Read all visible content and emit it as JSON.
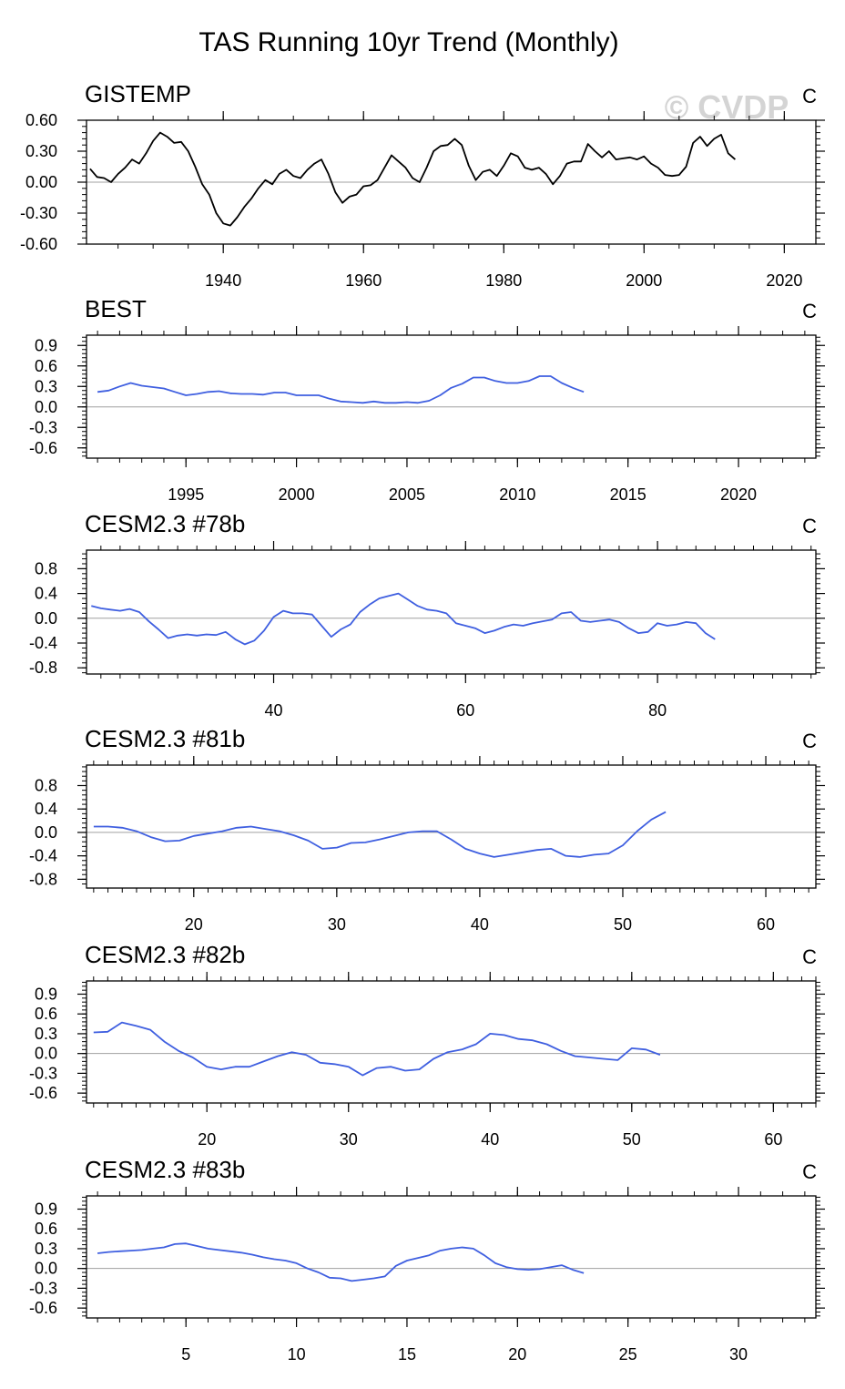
{
  "figure": {
    "title": "TAS Running 10yr Trend (Monthly)",
    "watermark": "© CVDP"
  },
  "chart_data": [
    {
      "type": "line",
      "title": "GISTEMP",
      "unit": "C",
      "color": "#000000",
      "xlim": [
        1920.5,
        2024.5
      ],
      "ylim": [
        -0.6,
        0.6
      ],
      "xticks": [
        1940,
        1960,
        1980,
        2000,
        2020
      ],
      "yticks": [
        0.6,
        0.3,
        0.0,
        -0.3,
        -0.6
      ],
      "ytick_labels": [
        "0.60",
        "0.30",
        "0.00",
        "-0.30",
        "-0.60"
      ],
      "x": [
        1921.0,
        1922.0,
        1923.0,
        1924.0,
        1925.0,
        1926.0,
        1927.0,
        1928.0,
        1929.0,
        1930.0,
        1931.0,
        1932.0,
        1933.0,
        1934.0,
        1935.0,
        1936.0,
        1937.0,
        1938.0,
        1939.0,
        1940.0,
        1941.0,
        1942.0,
        1943.0,
        1944.0,
        1945.0,
        1946.0,
        1947.0,
        1948.0,
        1949.0,
        1950.0,
        1951.0,
        1952.0,
        1953.0,
        1954.0,
        1955.0,
        1956.0,
        1957.0,
        1958.0,
        1959.0,
        1960.0,
        1961.0,
        1962.0,
        1963.0,
        1964.0,
        1965.0,
        1966.0,
        1967.0,
        1968.0,
        1969.0,
        1970.0,
        1971.0,
        1972.0,
        1973.0,
        1974.0,
        1975.0,
        1976.0,
        1977.0,
        1978.0,
        1979.0,
        1980.0,
        1981.0,
        1982.0,
        1983.0,
        1984.0,
        1985.0,
        1986.0,
        1987.0,
        1988.0,
        1989.0,
        1990.0,
        1991.0,
        1992.0,
        1993.0,
        1994.0,
        1995.0,
        1996.0,
        1997.0,
        1998.0,
        1999.0,
        2000.0,
        2001.0,
        2002.0,
        2003.0,
        2004.0,
        2005.0,
        2006.0,
        2007.0,
        2008.0,
        2009.0,
        2010.0,
        2011.0,
        2012.0,
        2013.0
      ],
      "y": [
        0.13,
        0.05,
        0.04,
        0.0,
        0.08,
        0.14,
        0.22,
        0.18,
        0.28,
        0.4,
        0.48,
        0.44,
        0.38,
        0.39,
        0.3,
        0.15,
        -0.02,
        -0.12,
        -0.3,
        -0.4,
        -0.42,
        -0.34,
        -0.24,
        -0.16,
        -0.06,
        0.02,
        -0.02,
        0.08,
        0.12,
        0.06,
        0.04,
        0.12,
        0.18,
        0.22,
        0.08,
        -0.1,
        -0.2,
        -0.14,
        -0.12,
        -0.04,
        -0.03,
        0.02,
        0.14,
        0.26,
        0.2,
        0.14,
        0.04,
        0.0,
        0.14,
        0.3,
        0.35,
        0.36,
        0.42,
        0.36,
        0.16,
        0.02,
        0.1,
        0.12,
        0.06,
        0.16,
        0.28,
        0.25,
        0.14,
        0.12,
        0.14,
        0.08,
        -0.02,
        0.06,
        0.18,
        0.2,
        0.2,
        0.37,
        0.3,
        0.24,
        0.3,
        0.22,
        0.23,
        0.24,
        0.22,
        0.25,
        0.18,
        0.14,
        0.07,
        0.06,
        0.07,
        0.15,
        0.38,
        0.44,
        0.35,
        0.42,
        0.46,
        0.28,
        0.22
      ]
    },
    {
      "type": "line",
      "title": "BEST",
      "unit": "C",
      "color": "#3f5fe0",
      "xlim": [
        1990.5,
        2023.5
      ],
      "ylim": [
        -0.75,
        1.05
      ],
      "xticks": [
        1995,
        2000,
        2005,
        2010,
        2015,
        2020
      ],
      "yticks": [
        0.9,
        0.6,
        0.3,
        0.0,
        -0.3,
        -0.6
      ],
      "ytick_labels": [
        "0.9",
        "0.6",
        "0.3",
        "0.0",
        "-0.3",
        "-0.6"
      ],
      "x": [
        1991.0,
        1991.5,
        1992.0,
        1992.5,
        1993.0,
        1993.5,
        1994.0,
        1994.5,
        1995.0,
        1995.5,
        1996.0,
        1996.5,
        1997.0,
        1997.5,
        1998.0,
        1998.5,
        1999.0,
        1999.5,
        2000.0,
        2000.5,
        2001.0,
        2001.5,
        2002.0,
        2002.5,
        2003.0,
        2003.5,
        2004.0,
        2004.5,
        2005.0,
        2005.5,
        2006.0,
        2006.5,
        2007.0,
        2007.5,
        2008.0,
        2008.5,
        2009.0,
        2009.5,
        2010.0,
        2010.5,
        2011.0,
        2011.5,
        2012.0,
        2012.5,
        2013.0
      ],
      "y": [
        0.22,
        0.24,
        0.3,
        0.35,
        0.31,
        0.29,
        0.27,
        0.22,
        0.17,
        0.19,
        0.22,
        0.23,
        0.2,
        0.19,
        0.19,
        0.18,
        0.21,
        0.21,
        0.17,
        0.17,
        0.17,
        0.12,
        0.08,
        0.07,
        0.06,
        0.08,
        0.06,
        0.06,
        0.07,
        0.06,
        0.09,
        0.17,
        0.28,
        0.34,
        0.43,
        0.43,
        0.38,
        0.35,
        0.35,
        0.38,
        0.45,
        0.45,
        0.35,
        0.28,
        0.22
      ]
    },
    {
      "type": "line",
      "title": "CESM2.3 #78b",
      "unit": "C",
      "color": "#3f5fe0",
      "xlim": [
        20.5,
        96.5
      ],
      "ylim": [
        -0.9,
        1.1
      ],
      "xticks": [
        40,
        60,
        80
      ],
      "yticks": [
        0.8,
        0.4,
        0.0,
        -0.4,
        -0.8
      ],
      "ytick_labels": [
        "0.8",
        "0.4",
        "0.0",
        "-0.4",
        "-0.8"
      ],
      "x": [
        21,
        22,
        23,
        24,
        25,
        26,
        27,
        28,
        29,
        30,
        31,
        32,
        33,
        34,
        35,
        36,
        37,
        38,
        39,
        40,
        41,
        42,
        43,
        44,
        45,
        46,
        47,
        48,
        49,
        50,
        51,
        52,
        53,
        54,
        55,
        56,
        57,
        58,
        59,
        60,
        61,
        62,
        63,
        64,
        65,
        66,
        67,
        68,
        69,
        70,
        71,
        72,
        73,
        74,
        75,
        76,
        77,
        78,
        79,
        80,
        81,
        82,
        83,
        84,
        85,
        86
      ],
      "y": [
        0.2,
        0.16,
        0.14,
        0.12,
        0.15,
        0.1,
        -0.05,
        -0.18,
        -0.32,
        -0.28,
        -0.26,
        -0.28,
        -0.26,
        -0.27,
        -0.22,
        -0.34,
        -0.42,
        -0.36,
        -0.2,
        0.02,
        0.12,
        0.08,
        0.08,
        0.06,
        -0.12,
        -0.3,
        -0.18,
        -0.1,
        0.1,
        0.22,
        0.32,
        0.36,
        0.4,
        0.3,
        0.2,
        0.14,
        0.12,
        0.08,
        -0.08,
        -0.12,
        -0.16,
        -0.24,
        -0.2,
        -0.14,
        -0.1,
        -0.12,
        -0.08,
        -0.05,
        -0.02,
        0.08,
        0.1,
        -0.04,
        -0.06,
        -0.04,
        -0.02,
        -0.06,
        -0.16,
        -0.24,
        -0.22,
        -0.08,
        -0.12,
        -0.1,
        -0.06,
        -0.08,
        -0.24,
        -0.34
      ]
    },
    {
      "type": "line",
      "title": "CESM2.3 #81b",
      "unit": "C",
      "color": "#3f5fe0",
      "xlim": [
        12.5,
        63.5
      ],
      "ylim": [
        -0.95,
        1.15
      ],
      "xticks": [
        20,
        30,
        40,
        50,
        60
      ],
      "yticks": [
        0.8,
        0.4,
        0.0,
        -0.4,
        -0.8
      ],
      "ytick_labels": [
        "0.8",
        "0.4",
        "0.0",
        "-0.4",
        "-0.8"
      ],
      "x": [
        13,
        14,
        15,
        16,
        17,
        18,
        19,
        20,
        21,
        22,
        23,
        24,
        25,
        26,
        27,
        28,
        29,
        30,
        31,
        32,
        33,
        34,
        35,
        36,
        37,
        38,
        39,
        40,
        41,
        42,
        43,
        44,
        45,
        46,
        47,
        48,
        49,
        50,
        51,
        52,
        53
      ],
      "y": [
        0.1,
        0.1,
        0.08,
        0.02,
        -0.08,
        -0.15,
        -0.14,
        -0.06,
        -0.02,
        0.02,
        0.08,
        0.1,
        0.06,
        0.02,
        -0.05,
        -0.14,
        -0.28,
        -0.26,
        -0.18,
        -0.17,
        -0.12,
        -0.06,
        0.0,
        0.02,
        0.02,
        -0.12,
        -0.28,
        -0.36,
        -0.42,
        -0.38,
        -0.34,
        -0.3,
        -0.28,
        -0.4,
        -0.42,
        -0.38,
        -0.36,
        -0.22,
        0.02,
        0.22,
        0.35
      ]
    },
    {
      "type": "line",
      "title": "CESM2.3 #82b",
      "unit": "C",
      "color": "#3f5fe0",
      "xlim": [
        11.5,
        63.0
      ],
      "ylim": [
        -0.75,
        1.1
      ],
      "xticks": [
        20,
        30,
        40,
        50,
        60
      ],
      "yticks": [
        0.9,
        0.6,
        0.3,
        0.0,
        -0.3,
        -0.6
      ],
      "ytick_labels": [
        "0.9",
        "0.6",
        "0.3",
        "0.0",
        "-0.3",
        "-0.6"
      ],
      "x": [
        12,
        13,
        14,
        15,
        16,
        17,
        18,
        19,
        20,
        21,
        22,
        23,
        24,
        25,
        26,
        27,
        28,
        29,
        30,
        31,
        32,
        33,
        34,
        35,
        36,
        37,
        38,
        39,
        40,
        41,
        42,
        43,
        44,
        45,
        46,
        47,
        48,
        49,
        50,
        51,
        52
      ],
      "y": [
        0.32,
        0.33,
        0.47,
        0.42,
        0.36,
        0.18,
        0.04,
        -0.06,
        -0.2,
        -0.24,
        -0.2,
        -0.2,
        -0.12,
        -0.04,
        0.02,
        -0.02,
        -0.14,
        -0.16,
        -0.2,
        -0.33,
        -0.22,
        -0.2,
        -0.26,
        -0.24,
        -0.08,
        0.02,
        0.06,
        0.14,
        0.3,
        0.28,
        0.22,
        0.2,
        0.14,
        0.04,
        -0.04,
        -0.06,
        -0.08,
        -0.1,
        0.08,
        0.06,
        -0.02
      ]
    },
    {
      "type": "line",
      "title": "CESM2.3 #83b",
      "unit": "C",
      "color": "#3f5fe0",
      "xlim": [
        0.5,
        33.5
      ],
      "ylim": [
        -0.75,
        1.1
      ],
      "xticks": [
        5,
        10,
        15,
        20,
        25,
        30
      ],
      "yticks": [
        0.9,
        0.6,
        0.3,
        0.0,
        -0.3,
        -0.6
      ],
      "ytick_labels": [
        "0.9",
        "0.6",
        "0.3",
        "0.0",
        "-0.3",
        "-0.6"
      ],
      "x": [
        1.0,
        1.5,
        2.0,
        2.5,
        3.0,
        3.5,
        4.0,
        4.5,
        5.0,
        5.5,
        6.0,
        6.5,
        7.0,
        7.5,
        8.0,
        8.5,
        9.0,
        9.5,
        10.0,
        10.5,
        11.0,
        11.5,
        12.0,
        12.5,
        13.0,
        13.5,
        14.0,
        14.5,
        15.0,
        15.5,
        16.0,
        16.5,
        17.0,
        17.5,
        18.0,
        18.5,
        19.0,
        19.5,
        20.0,
        20.5,
        21.0,
        21.5,
        22.0,
        22.5,
        23.0
      ],
      "y": [
        0.23,
        0.25,
        0.26,
        0.27,
        0.28,
        0.3,
        0.32,
        0.37,
        0.38,
        0.34,
        0.3,
        0.28,
        0.26,
        0.24,
        0.21,
        0.17,
        0.14,
        0.12,
        0.08,
        0.0,
        -0.06,
        -0.14,
        -0.15,
        -0.19,
        -0.17,
        -0.15,
        -0.12,
        0.04,
        0.12,
        0.16,
        0.2,
        0.27,
        0.3,
        0.32,
        0.3,
        0.2,
        0.08,
        0.02,
        -0.01,
        -0.02,
        -0.01,
        0.02,
        0.05,
        -0.02,
        -0.07
      ]
    }
  ]
}
